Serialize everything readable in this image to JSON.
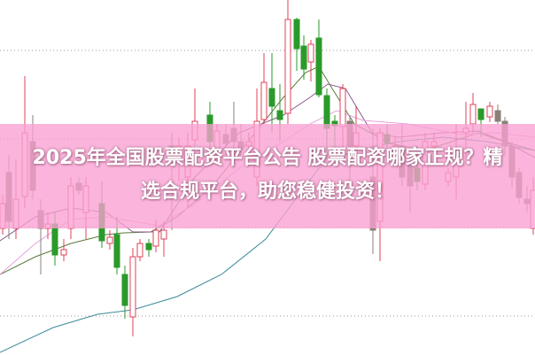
{
  "headline": "2025年全国股票配资平台公告 股票配资哪家正规？精选合规平台，助您稳健投资！",
  "colors": {
    "up_candle": "#e0405a",
    "down_candle": "#2a9a2a",
    "neutral_candle": "#8a8078",
    "banner": "#f9a6d6",
    "ma_teal": "#3a8a9a",
    "ma_purple": "#8a5a8a",
    "ma_pink": "#e8a0e0",
    "ma_olive": "#5a7a3a"
  }
}
